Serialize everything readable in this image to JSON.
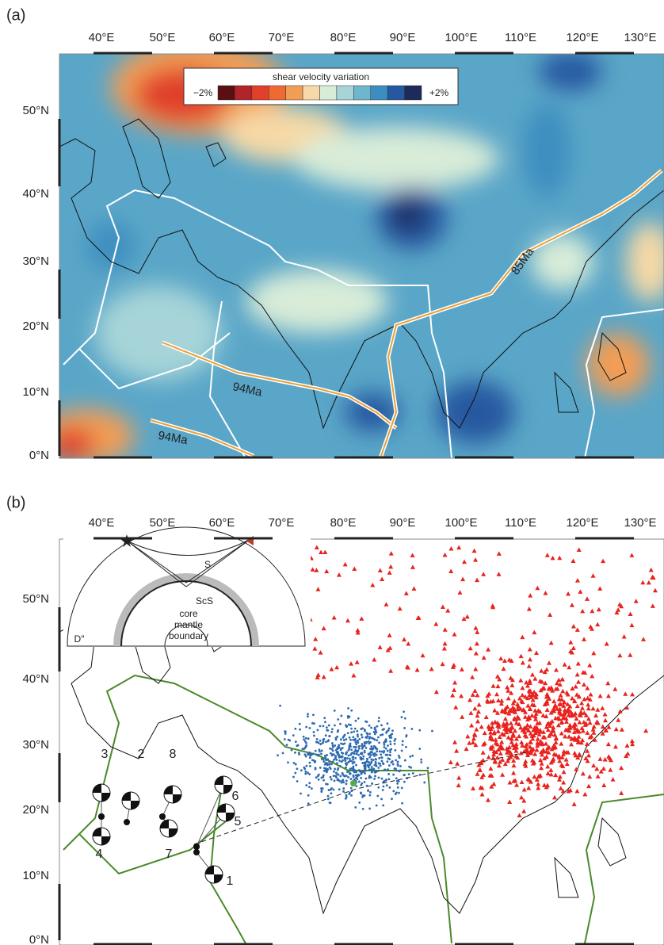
{
  "panels": [
    {
      "label": "(a)",
      "lon_labels": [
        "40°E",
        "50°E",
        "60°E",
        "70°E",
        "80°E",
        "90°E",
        "100°E",
        "110°E",
        "120°E",
        "130°E"
      ],
      "lat_labels": [
        "50°N",
        "40°N",
        "30°N",
        "20°N",
        "10°N",
        "0°N"
      ],
      "colorbar": {
        "title": "shear velocity variation",
        "min_label": "−2%",
        "max_label": "+2%",
        "colors": [
          "#5a1010",
          "#b3232a",
          "#e0402c",
          "#ef6a32",
          "#f29d55",
          "#f6d9a6",
          "#d8ecd8",
          "#a6d4d8",
          "#6eb6cc",
          "#3d8ec0",
          "#2658a0",
          "#1c2a5c"
        ]
      },
      "annotations": [
        "94Ma",
        "94Ma",
        "85Ma"
      ]
    },
    {
      "label": "(b)",
      "lon_labels": [
        "40°E",
        "50°E",
        "60°E",
        "70°E",
        "80°E",
        "90°E",
        "100°E",
        "110°E",
        "120°E",
        "130°E"
      ],
      "lat_labels": [
        "50°N",
        "40°N",
        "30°N",
        "20°N",
        "10°N",
        "0°N"
      ],
      "inset": {
        "ray_labels": [
          "S",
          "ScS"
        ],
        "boundary_label": [
          "core",
          "mantle",
          "boundary"
        ],
        "layer_label": "D″"
      },
      "events": [
        "1",
        "2",
        "3",
        "4",
        "5",
        "6",
        "7",
        "8"
      ]
    }
  ]
}
